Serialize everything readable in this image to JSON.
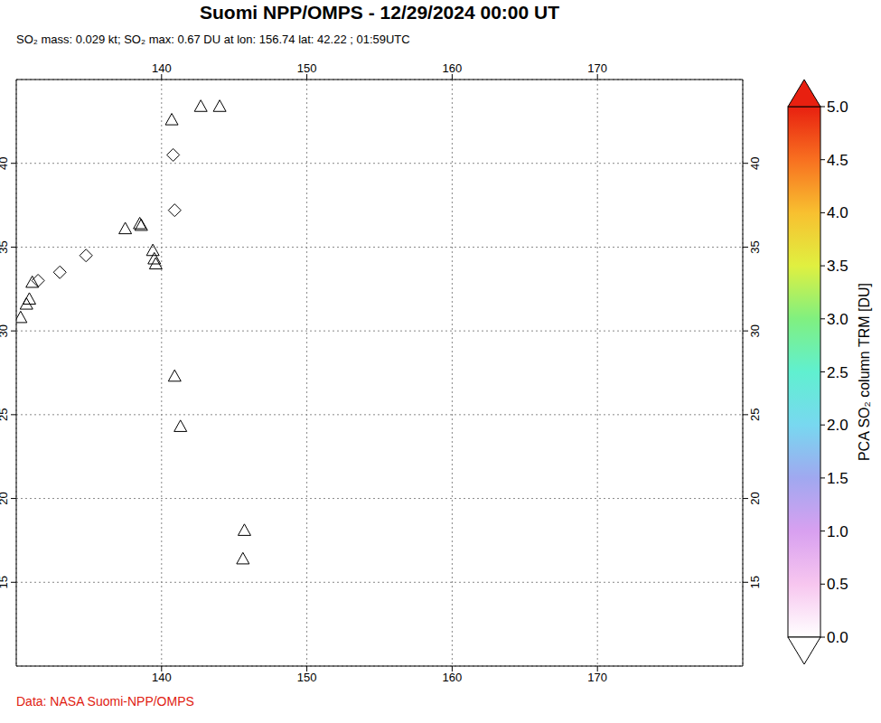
{
  "chart_data": {
    "type": "scatter",
    "title": "Suomi NPP/OMPS - 12/29/2024 00:00 UT",
    "subtitle": "SO₂ mass: 0.029 kt; SO₂ max: 0.67 DU at lon: 156.74 lat: 42.22 ; 01:59UTC",
    "source": "Data: NASA Suomi-NPP/OMPS",
    "xlim": [
      130,
      180
    ],
    "ylim": [
      10,
      45
    ],
    "xticks": [
      140,
      150,
      160,
      170
    ],
    "yticks": [
      15,
      20,
      25,
      30,
      35,
      40
    ],
    "grid": true,
    "series": [
      {
        "marker": "triangle",
        "x": [
          142.7,
          144.0,
          140.7,
          137.5,
          138.5,
          138.6,
          139.4,
          139.5,
          139.6,
          131.1,
          130.9,
          130.7,
          130.3,
          140.9,
          141.3,
          145.7,
          145.6
        ],
        "y": [
          43.4,
          43.4,
          42.6,
          36.1,
          36.4,
          36.3,
          34.8,
          34.3,
          34.0,
          32.9,
          31.9,
          31.6,
          30.8,
          27.3,
          24.3,
          18.1,
          16.4
        ]
      },
      {
        "marker": "diamond",
        "x": [
          140.8,
          140.9,
          134.8,
          133.0,
          131.5
        ],
        "y": [
          40.5,
          37.2,
          34.5,
          33.5,
          33.0
        ]
      }
    ],
    "colorbar": {
      "label": "PCA SO₂ column TRM [DU]",
      "range": [
        0,
        5
      ],
      "ticks": [
        {
          "value": 0,
          "label": "0.0"
        },
        {
          "value": 0.5,
          "label": "0.5"
        },
        {
          "value": 1,
          "label": "1.0"
        },
        {
          "value": 1.5,
          "label": "1.5"
        },
        {
          "value": 2,
          "label": "2.0"
        },
        {
          "value": 2.5,
          "label": "2.5"
        },
        {
          "value": 3,
          "label": "3.0"
        },
        {
          "value": 3.5,
          "label": "3.5"
        },
        {
          "value": 4,
          "label": "4.0"
        },
        {
          "value": 4.5,
          "label": "4.5"
        },
        {
          "value": 5,
          "label": "5.0"
        }
      ],
      "colors": [
        "#ffffff",
        "#f7c6ef",
        "#d8a0f0",
        "#a0a8f0",
        "#78d8f0",
        "#60f0d0",
        "#80f080",
        "#e0f040",
        "#f8c030",
        "#f87020",
        "#e82010"
      ]
    }
  }
}
